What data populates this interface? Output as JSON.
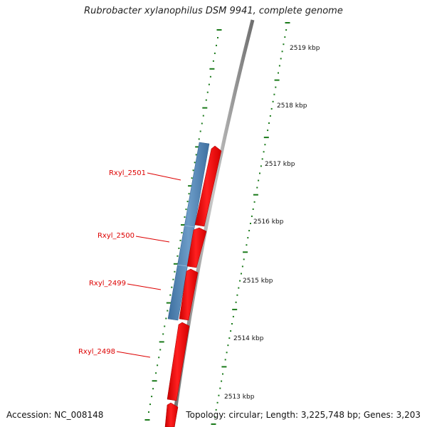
{
  "title": "Rubrobacter xylanophilus DSM 9941, complete genome",
  "footer": {
    "accession": "Accession: NC_008148",
    "summary": "Topology: circular; Length: 3,225,748 bp; Genes: 3,203"
  },
  "scale": {
    "unit": "kbp",
    "labels": [
      "2519 kbp",
      "2518 kbp",
      "2517 kbp",
      "2516 kbp",
      "2515 kbp",
      "2514 kbp",
      "2513 kbp"
    ]
  },
  "genes": [
    {
      "name": "Rxyl_2501",
      "strand": "forward"
    },
    {
      "name": "Rxyl_2500",
      "strand": "forward"
    },
    {
      "name": "Rxyl_2499",
      "strand": "forward"
    },
    {
      "name": "Rxyl_2498",
      "strand": "forward"
    }
  ],
  "colors": {
    "gene_forward": "#ff0000",
    "gene_other": "#4a80b4",
    "label": "#dd0000",
    "tick": "#1a7a1a",
    "backbone": "#8c8c8c"
  }
}
